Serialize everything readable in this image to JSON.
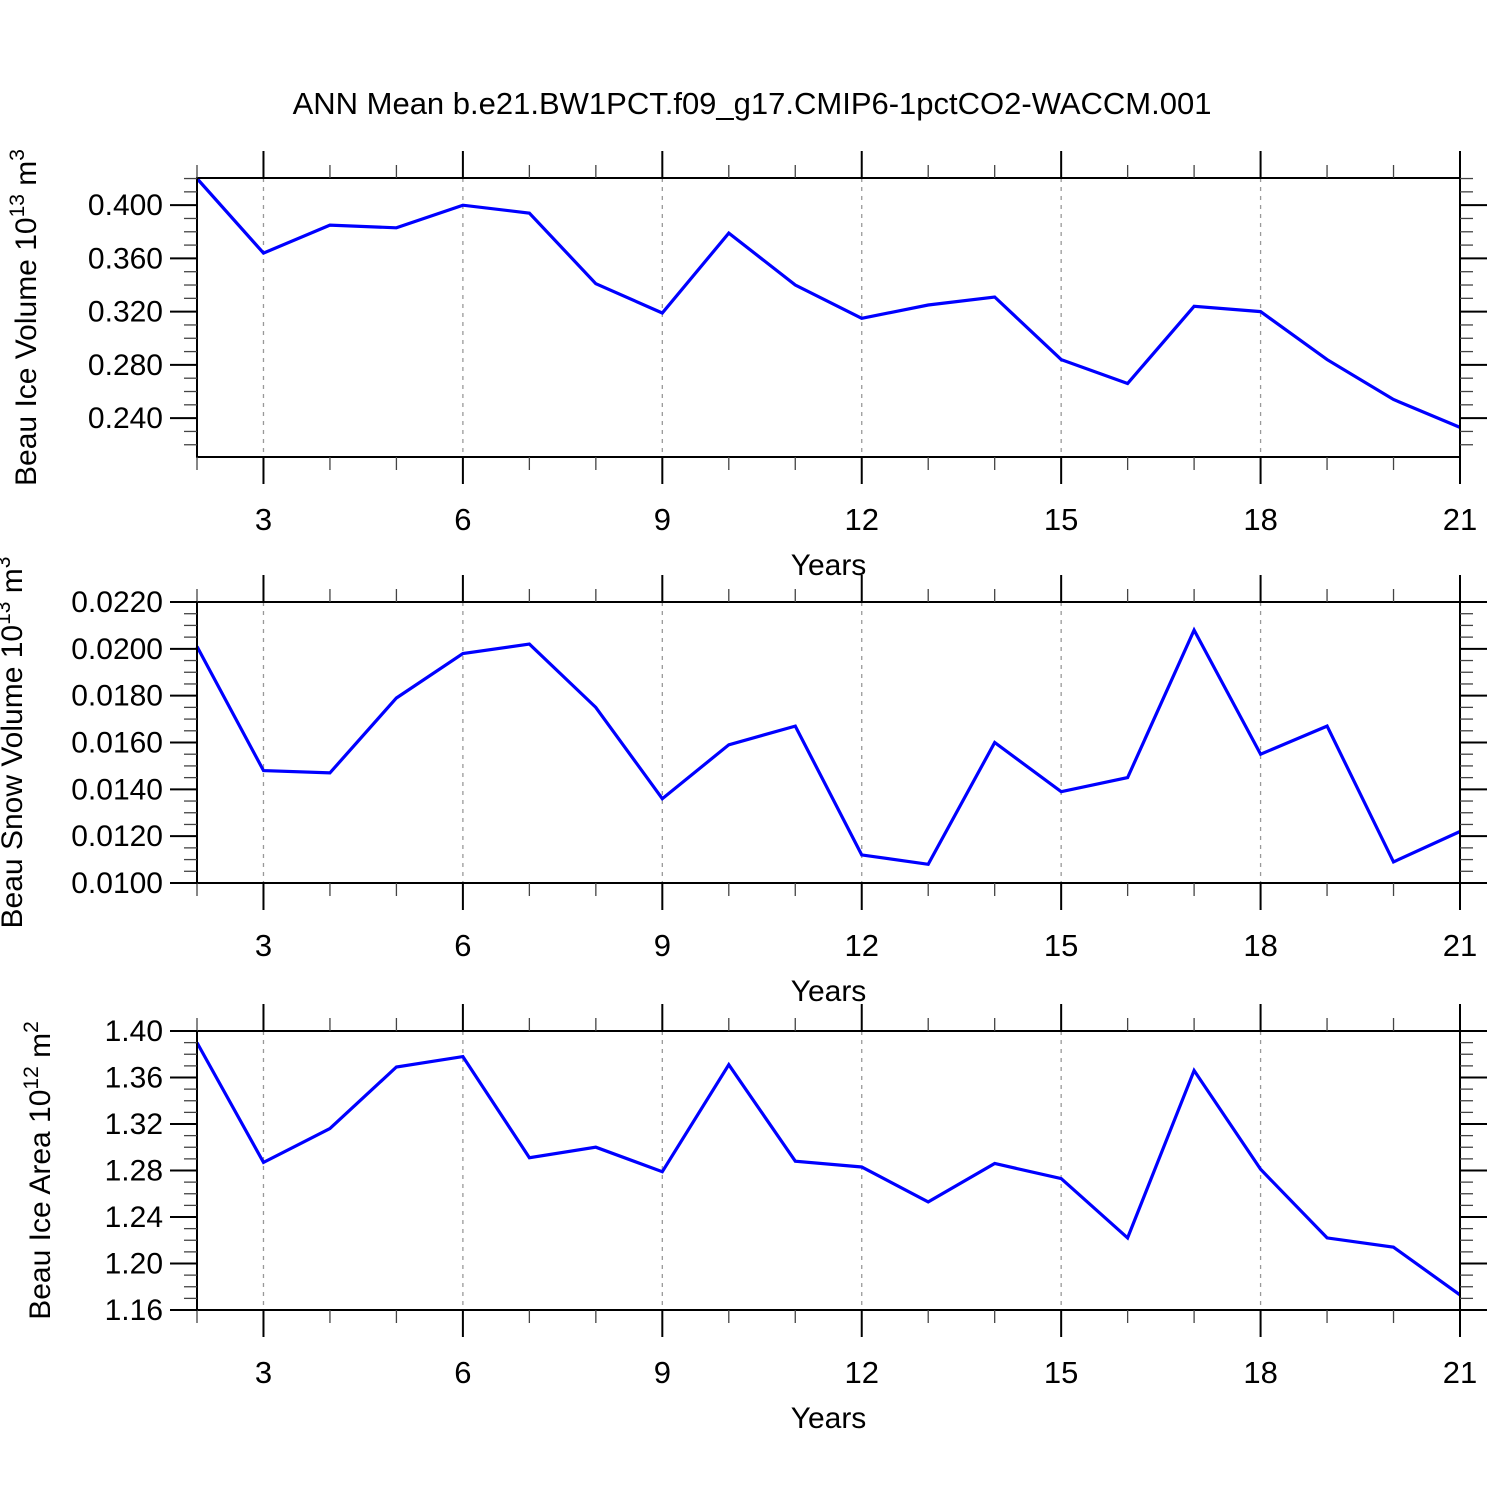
{
  "title": "ANN Mean b.e21.BW1PCT.f09_g17.CMIP6-1pctCO2-WACCM.001",
  "colors": {
    "line": "#0000ff",
    "grid": "#999999",
    "frame": "#000000",
    "minor_tick": "#444444",
    "background": "#ffffff"
  },
  "chart_data": [
    {
      "type": "line",
      "series_label": "Beau Ice Volume",
      "ylabel": "Beau Ice Volume 10^13 m^3",
      "ylabel_parts": [
        {
          "text": "Beau Ice Volume 10",
          "sup": false
        },
        {
          "text": "13",
          "sup": true
        },
        {
          "text": " m",
          "sup": false
        },
        {
          "text": "3",
          "sup": true
        }
      ],
      "xlabel": "Years",
      "x": [
        2,
        3,
        4,
        5,
        6,
        7,
        8,
        9,
        10,
        11,
        12,
        13,
        14,
        15,
        16,
        17,
        18,
        19,
        20,
        21
      ],
      "values": [
        0.42,
        0.364,
        0.385,
        0.383,
        0.4,
        0.394,
        0.341,
        0.319,
        0.379,
        0.34,
        0.315,
        0.325,
        0.331,
        0.284,
        0.266,
        0.324,
        0.32,
        0.284,
        0.254,
        0.233
      ],
      "xlim": [
        2,
        21
      ],
      "ylim": [
        0.2108,
        0.4204
      ],
      "xticks": [
        3,
        6,
        9,
        12,
        15,
        18,
        21
      ],
      "xtick_labels": [
        "3",
        "6",
        "9",
        "12",
        "15",
        "18",
        "21"
      ],
      "x_minor_step": 1,
      "yticks": [
        0.24,
        0.28,
        0.32,
        0.36,
        0.4
      ],
      "ytick_labels": [
        "0.240",
        "0.280",
        "0.320",
        "0.360",
        "0.400"
      ],
      "y_minor_step": 0.01,
      "grid_x": [
        3,
        6,
        9,
        12,
        15,
        18
      ],
      "grid_style": "vertical-dashed",
      "legend": "none"
    },
    {
      "type": "line",
      "series_label": "Beau Snow Volume",
      "ylabel": "Beau Snow Volume 10^13 m^3",
      "ylabel_parts": [
        {
          "text": "Beau Snow Volume 10",
          "sup": false
        },
        {
          "text": "13",
          "sup": true
        },
        {
          "text": " m",
          "sup": false
        },
        {
          "text": "3",
          "sup": true
        }
      ],
      "xlabel": "Years",
      "x": [
        2,
        3,
        4,
        5,
        6,
        7,
        8,
        9,
        10,
        11,
        12,
        13,
        14,
        15,
        16,
        17,
        18,
        19,
        20,
        21
      ],
      "values": [
        0.0201,
        0.0148,
        0.0147,
        0.0179,
        0.0198,
        0.0202,
        0.0175,
        0.0136,
        0.0159,
        0.0167,
        0.0112,
        0.0108,
        0.016,
        0.0139,
        0.0145,
        0.0208,
        0.0155,
        0.0167,
        0.0109,
        0.0122
      ],
      "xlim": [
        2,
        21
      ],
      "ylim": [
        0.01,
        0.022
      ],
      "xticks": [
        3,
        6,
        9,
        12,
        15,
        18,
        21
      ],
      "xtick_labels": [
        "3",
        "6",
        "9",
        "12",
        "15",
        "18",
        "21"
      ],
      "x_minor_step": 1,
      "yticks": [
        0.01,
        0.012,
        0.014,
        0.016,
        0.018,
        0.02,
        0.022
      ],
      "ytick_labels": [
        "0.0100",
        "0.0120",
        "0.0140",
        "0.0160",
        "0.0180",
        "0.0200",
        "0.0220"
      ],
      "y_minor_step": 0.0005,
      "grid_x": [
        3,
        6,
        9,
        12,
        15,
        18
      ],
      "grid_style": "vertical-dashed",
      "legend": "none"
    },
    {
      "type": "line",
      "series_label": "Beau Ice Area",
      "ylabel": "Beau Ice Area 10^12 m^2",
      "ylabel_parts": [
        {
          "text": "Beau Ice Area 10",
          "sup": false
        },
        {
          "text": "12",
          "sup": true
        },
        {
          "text": " m",
          "sup": false
        },
        {
          "text": "2",
          "sup": true
        }
      ],
      "xlabel": "Years",
      "x": [
        2,
        3,
        4,
        5,
        6,
        7,
        8,
        9,
        10,
        11,
        12,
        13,
        14,
        15,
        16,
        17,
        18,
        19,
        20,
        21
      ],
      "values": [
        1.39,
        1.287,
        1.316,
        1.369,
        1.378,
        1.291,
        1.3,
        1.279,
        1.371,
        1.288,
        1.283,
        1.253,
        1.286,
        1.273,
        1.222,
        1.366,
        1.281,
        1.222,
        1.214,
        1.173
      ],
      "xlim": [
        2,
        21
      ],
      "ylim": [
        1.16,
        1.4
      ],
      "xticks": [
        3,
        6,
        9,
        12,
        15,
        18,
        21
      ],
      "xtick_labels": [
        "3",
        "6",
        "9",
        "12",
        "15",
        "18",
        "21"
      ],
      "x_minor_step": 1,
      "yticks": [
        1.16,
        1.2,
        1.24,
        1.28,
        1.32,
        1.36,
        1.4
      ],
      "ytick_labels": [
        "1.16",
        "1.20",
        "1.24",
        "1.28",
        "1.32",
        "1.36",
        "1.40"
      ],
      "y_minor_step": 0.01,
      "grid_x": [
        3,
        6,
        9,
        12,
        15,
        18
      ],
      "grid_style": "vertical-dashed",
      "legend": "none"
    }
  ]
}
